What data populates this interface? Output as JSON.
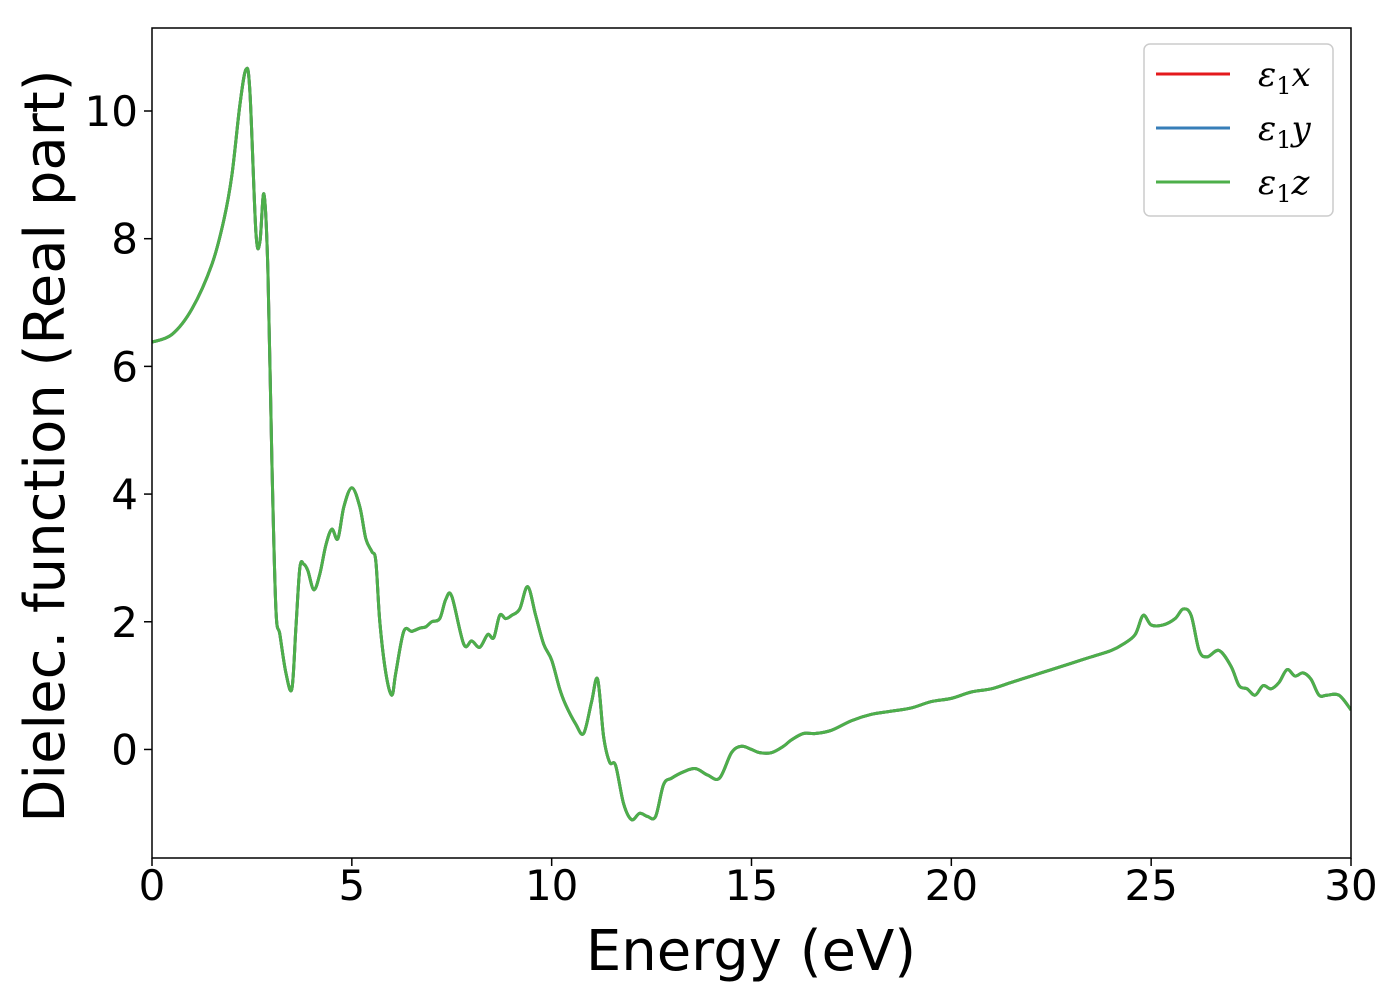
{
  "chart_data": {
    "type": "line",
    "title": "",
    "xlabel": "Energy (eV)",
    "ylabel": "Dielec. function (Real part)",
    "xlim": [
      0,
      30
    ],
    "ylim": [
      -1.7,
      11.3
    ],
    "xticks": [
      0,
      5,
      10,
      15,
      20,
      25,
      30
    ],
    "yticks": [
      0,
      2,
      4,
      6,
      8,
      10
    ],
    "grid": false,
    "legend_position": "top-right",
    "series": [
      {
        "name": "ε1x",
        "symbol": "ε",
        "sub": "1",
        "suffix": "x",
        "color": "#e41a1c",
        "x": [
          0,
          0.5,
          1.0,
          1.5,
          1.8,
          2.0,
          2.2,
          2.35,
          2.45,
          2.6,
          2.7,
          2.8,
          2.9,
          3.0,
          3.1,
          3.2,
          3.35,
          3.5,
          3.6,
          3.7,
          3.8,
          3.9,
          4.05,
          4.2,
          4.35,
          4.5,
          4.65,
          4.8,
          5.0,
          5.2,
          5.35,
          5.5,
          5.6,
          5.7,
          5.85,
          6.0,
          6.1,
          6.3,
          6.5,
          6.7,
          6.85,
          7.0,
          7.2,
          7.35,
          7.5,
          7.8,
          8.0,
          8.2,
          8.4,
          8.55,
          8.7,
          8.85,
          9.0,
          9.2,
          9.4,
          9.6,
          9.8,
          10.0,
          10.2,
          10.35,
          10.6,
          10.8,
          11.0,
          11.15,
          11.3,
          11.45,
          11.6,
          11.8,
          12.0,
          12.2,
          12.4,
          12.6,
          12.8,
          13.0,
          13.3,
          13.6,
          13.9,
          14.2,
          14.5,
          14.75,
          15.0,
          15.2,
          15.5,
          15.8,
          16.0,
          16.3,
          16.6,
          17.0,
          17.5,
          18.0,
          18.5,
          19.0,
          19.5,
          20.0,
          20.5,
          21.0,
          21.5,
          22.0,
          22.5,
          23.0,
          23.5,
          24.0,
          24.3,
          24.6,
          24.8,
          25.0,
          25.3,
          25.6,
          25.8,
          26.0,
          26.2,
          26.4,
          26.7,
          27.0,
          27.2,
          27.4,
          27.6,
          27.8,
          28.0,
          28.2,
          28.4,
          28.6,
          28.8,
          29.0,
          29.2,
          29.4,
          29.7,
          30.0
        ],
        "y": [
          6.38,
          6.5,
          6.9,
          7.6,
          8.3,
          9.0,
          10.1,
          10.65,
          10.3,
          8.1,
          7.95,
          8.7,
          7.5,
          4.5,
          2.2,
          1.8,
          1.2,
          0.95,
          1.9,
          2.85,
          2.9,
          2.8,
          2.5,
          2.75,
          3.2,
          3.45,
          3.3,
          3.8,
          4.1,
          3.8,
          3.3,
          3.1,
          2.95,
          2.0,
          1.2,
          0.85,
          1.2,
          1.85,
          1.85,
          1.9,
          1.92,
          2.0,
          2.05,
          2.35,
          2.4,
          1.65,
          1.7,
          1.6,
          1.8,
          1.75,
          2.1,
          2.05,
          2.1,
          2.2,
          2.55,
          2.1,
          1.65,
          1.4,
          0.95,
          0.7,
          0.4,
          0.25,
          0.75,
          1.1,
          0.2,
          -0.2,
          -0.25,
          -0.85,
          -1.1,
          -1.0,
          -1.05,
          -1.05,
          -0.55,
          -0.45,
          -0.35,
          -0.3,
          -0.4,
          -0.45,
          -0.05,
          0.05,
          0.0,
          -0.05,
          -0.05,
          0.05,
          0.15,
          0.25,
          0.25,
          0.3,
          0.45,
          0.55,
          0.6,
          0.65,
          0.75,
          0.8,
          0.9,
          0.95,
          1.05,
          1.15,
          1.25,
          1.35,
          1.45,
          1.55,
          1.65,
          1.8,
          2.1,
          1.95,
          1.95,
          2.05,
          2.2,
          2.1,
          1.55,
          1.45,
          1.55,
          1.3,
          1.0,
          0.95,
          0.85,
          1.0,
          0.95,
          1.05,
          1.25,
          1.15,
          1.2,
          1.1,
          0.85,
          0.85,
          0.85,
          0.62
        ]
      },
      {
        "name": "ε1y",
        "symbol": "ε",
        "sub": "1",
        "suffix": "y",
        "color": "#377eb8",
        "same_as": "ε1x"
      },
      {
        "name": "ε1z",
        "symbol": "ε",
        "sub": "1",
        "suffix": "z",
        "color": "#4daf4a",
        "same_as": "ε1x"
      }
    ]
  }
}
